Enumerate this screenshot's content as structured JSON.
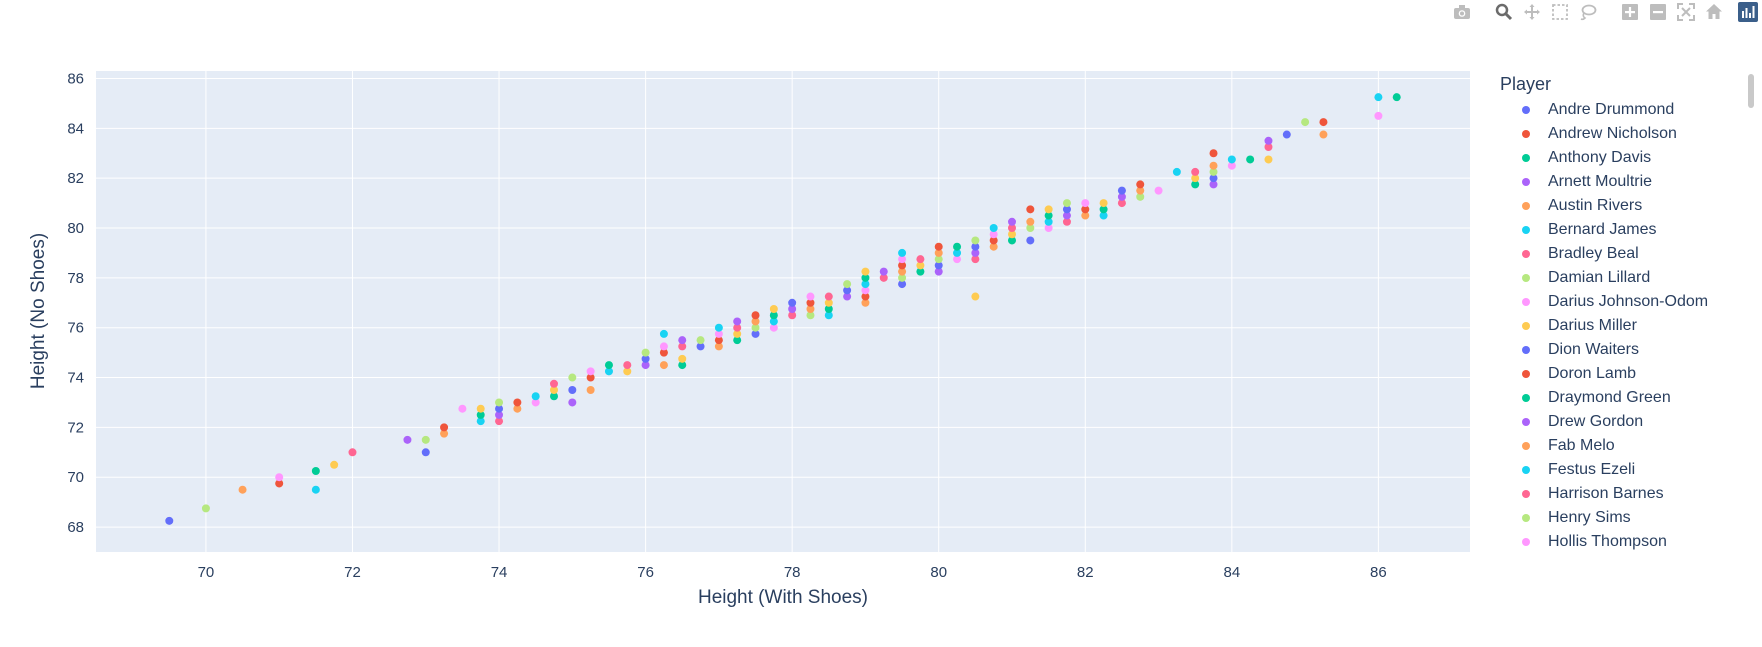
{
  "modebar": {
    "buttons": [
      "camera-icon",
      "zoom-icon",
      "pan-icon",
      "box-select-icon",
      "lasso-icon",
      "zoom-in-icon",
      "zoom-out-icon",
      "autoscale-icon",
      "reset-axes-icon",
      "plotly-logo-icon"
    ],
    "active": "zoom-icon"
  },
  "legend": {
    "title": "Player",
    "items": [
      {
        "name": "Andre Drummond",
        "color": "#636efa"
      },
      {
        "name": "Andrew Nicholson",
        "color": "#EF553B"
      },
      {
        "name": "Anthony Davis",
        "color": "#00cc96"
      },
      {
        "name": "Arnett Moultrie",
        "color": "#ab63fa"
      },
      {
        "name": "Austin Rivers",
        "color": "#FFA15A"
      },
      {
        "name": "Bernard James",
        "color": "#19d3f3"
      },
      {
        "name": "Bradley Beal",
        "color": "#FF6692"
      },
      {
        "name": "Damian Lillard",
        "color": "#B6E880"
      },
      {
        "name": "Darius Johnson-Odom",
        "color": "#FF97FF"
      },
      {
        "name": "Darius Miller",
        "color": "#FECB52"
      },
      {
        "name": "Dion Waiters",
        "color": "#636efa"
      },
      {
        "name": "Doron Lamb",
        "color": "#EF553B"
      },
      {
        "name": "Draymond Green",
        "color": "#00cc96"
      },
      {
        "name": "Drew Gordon",
        "color": "#ab63fa"
      },
      {
        "name": "Fab Melo",
        "color": "#FFA15A"
      },
      {
        "name": "Festus Ezeli",
        "color": "#19d3f3"
      },
      {
        "name": "Harrison Barnes",
        "color": "#FF6692"
      },
      {
        "name": "Henry Sims",
        "color": "#B6E880"
      },
      {
        "name": "Hollis Thompson",
        "color": "#FF97FF"
      }
    ]
  },
  "chart_data": {
    "type": "scatter",
    "title": "",
    "xlabel": "Height (With Shoes)",
    "ylabel": "Height (No Shoes)",
    "xlim": [
      68.5,
      87.25
    ],
    "ylim": [
      67.0,
      86.3
    ],
    "xticks": [
      70,
      72,
      74,
      76,
      78,
      80,
      82,
      84,
      86
    ],
    "yticks": [
      68,
      70,
      72,
      74,
      76,
      78,
      80,
      82,
      84,
      86
    ],
    "grid": true,
    "plot_bgcolor": "#E5ECF6",
    "colorway": [
      "#636efa",
      "#EF553B",
      "#00cc96",
      "#ab63fa",
      "#FFA15A",
      "#19d3f3",
      "#FF6692",
      "#B6E880",
      "#FF97FF",
      "#FECB52"
    ],
    "points": [
      [
        69.5,
        68.25
      ],
      [
        70.0,
        68.75
      ],
      [
        70.5,
        69.5
      ],
      [
        71.0,
        69.75
      ],
      [
        71.0,
        70.0
      ],
      [
        71.5,
        69.5
      ],
      [
        71.5,
        70.25
      ],
      [
        71.75,
        70.5
      ],
      [
        72.0,
        71.0
      ],
      [
        72.75,
        71.5
      ],
      [
        73.0,
        71.0
      ],
      [
        73.0,
        71.5
      ],
      [
        73.25,
        71.75
      ],
      [
        73.25,
        72.0
      ],
      [
        73.5,
        72.75
      ],
      [
        73.75,
        72.25
      ],
      [
        73.75,
        72.5
      ],
      [
        73.75,
        72.75
      ],
      [
        74.0,
        72.25
      ],
      [
        74.0,
        72.5
      ],
      [
        74.0,
        72.75
      ],
      [
        74.0,
        73.0
      ],
      [
        74.25,
        72.75
      ],
      [
        74.25,
        73.0
      ],
      [
        74.5,
        73.0
      ],
      [
        74.5,
        73.25
      ],
      [
        74.75,
        73.25
      ],
      [
        74.75,
        73.5
      ],
      [
        74.75,
        73.75
      ],
      [
        75.0,
        73.0
      ],
      [
        75.0,
        73.5
      ],
      [
        75.0,
        74.0
      ],
      [
        75.25,
        73.5
      ],
      [
        75.25,
        74.0
      ],
      [
        75.25,
        74.25
      ],
      [
        75.5,
        74.25
      ],
      [
        75.5,
        74.5
      ],
      [
        75.75,
        74.25
      ],
      [
        75.75,
        74.5
      ],
      [
        76.0,
        74.5
      ],
      [
        76.0,
        74.75
      ],
      [
        76.0,
        75.0
      ],
      [
        76.25,
        74.5
      ],
      [
        76.25,
        75.0
      ],
      [
        76.25,
        75.25
      ],
      [
        76.25,
        75.75
      ],
      [
        76.5,
        74.5
      ],
      [
        76.5,
        74.75
      ],
      [
        76.5,
        75.25
      ],
      [
        76.5,
        75.5
      ],
      [
        76.75,
        75.25
      ],
      [
        76.75,
        75.5
      ],
      [
        77.0,
        75.25
      ],
      [
        77.0,
        75.5
      ],
      [
        77.0,
        75.75
      ],
      [
        77.0,
        76.0
      ],
      [
        77.25,
        75.5
      ],
      [
        77.25,
        75.75
      ],
      [
        77.25,
        76.0
      ],
      [
        77.25,
        76.25
      ],
      [
        77.5,
        75.75
      ],
      [
        77.5,
        76.0
      ],
      [
        77.5,
        76.25
      ],
      [
        77.5,
        76.5
      ],
      [
        77.75,
        76.0
      ],
      [
        77.75,
        76.25
      ],
      [
        77.75,
        76.5
      ],
      [
        77.75,
        76.75
      ],
      [
        78.0,
        76.5
      ],
      [
        78.0,
        76.75
      ],
      [
        78.0,
        77.0
      ],
      [
        78.25,
        76.5
      ],
      [
        78.25,
        76.75
      ],
      [
        78.25,
        77.0
      ],
      [
        78.25,
        77.25
      ],
      [
        78.5,
        76.5
      ],
      [
        78.5,
        76.75
      ],
      [
        78.5,
        77.0
      ],
      [
        78.5,
        77.25
      ],
      [
        78.75,
        77.25
      ],
      [
        78.75,
        77.5
      ],
      [
        78.75,
        77.75
      ],
      [
        79.0,
        77.0
      ],
      [
        79.0,
        77.25
      ],
      [
        79.0,
        77.5
      ],
      [
        79.0,
        77.75
      ],
      [
        79.0,
        78.0
      ],
      [
        79.0,
        78.25
      ],
      [
        79.25,
        78.0
      ],
      [
        79.25,
        78.25
      ],
      [
        79.5,
        77.75
      ],
      [
        79.5,
        78.0
      ],
      [
        79.5,
        78.25
      ],
      [
        79.5,
        78.5
      ],
      [
        79.5,
        78.75
      ],
      [
        79.5,
        79.0
      ],
      [
        79.75,
        78.25
      ],
      [
        79.75,
        78.5
      ],
      [
        79.75,
        78.75
      ],
      [
        80.0,
        78.25
      ],
      [
        80.0,
        78.5
      ],
      [
        80.0,
        78.75
      ],
      [
        80.0,
        79.0
      ],
      [
        80.0,
        79.25
      ],
      [
        80.25,
        78.75
      ],
      [
        80.25,
        79.0
      ],
      [
        80.25,
        79.25
      ],
      [
        80.5,
        77.25
      ],
      [
        80.5,
        78.75
      ],
      [
        80.5,
        79.0
      ],
      [
        80.5,
        79.25
      ],
      [
        80.5,
        79.5
      ],
      [
        80.75,
        79.25
      ],
      [
        80.75,
        79.5
      ],
      [
        80.75,
        79.75
      ],
      [
        80.75,
        80.0
      ],
      [
        81.0,
        79.5
      ],
      [
        81.0,
        79.75
      ],
      [
        81.0,
        80.0
      ],
      [
        81.0,
        80.25
      ],
      [
        81.25,
        79.5
      ],
      [
        81.25,
        80.0
      ],
      [
        81.25,
        80.25
      ],
      [
        81.25,
        80.75
      ],
      [
        81.5,
        80.0
      ],
      [
        81.5,
        80.25
      ],
      [
        81.5,
        80.5
      ],
      [
        81.5,
        80.75
      ],
      [
        81.75,
        80.25
      ],
      [
        81.75,
        80.5
      ],
      [
        81.75,
        80.75
      ],
      [
        81.75,
        81.0
      ],
      [
        82.0,
        80.5
      ],
      [
        82.0,
        80.75
      ],
      [
        82.0,
        81.0
      ],
      [
        82.25,
        80.5
      ],
      [
        82.25,
        80.75
      ],
      [
        82.25,
        81.0
      ],
      [
        82.5,
        81.0
      ],
      [
        82.5,
        81.25
      ],
      [
        82.5,
        81.5
      ],
      [
        82.75,
        81.25
      ],
      [
        82.75,
        81.5
      ],
      [
        82.75,
        81.75
      ],
      [
        83.0,
        81.5
      ],
      [
        83.25,
        82.25
      ],
      [
        83.5,
        81.75
      ],
      [
        83.5,
        82.0
      ],
      [
        83.5,
        82.25
      ],
      [
        83.75,
        81.75
      ],
      [
        83.75,
        82.0
      ],
      [
        83.75,
        82.25
      ],
      [
        83.75,
        82.5
      ],
      [
        83.75,
        83.0
      ],
      [
        84.0,
        82.5
      ],
      [
        84.0,
        82.75
      ],
      [
        84.25,
        82.75
      ],
      [
        84.5,
        82.75
      ],
      [
        84.5,
        83.25
      ],
      [
        84.5,
        83.5
      ],
      [
        84.75,
        83.75
      ],
      [
        85.0,
        84.25
      ],
      [
        85.25,
        83.75
      ],
      [
        85.25,
        84.25
      ],
      [
        86.0,
        84.5
      ],
      [
        86.0,
        85.25
      ],
      [
        86.25,
        85.25
      ]
    ]
  }
}
